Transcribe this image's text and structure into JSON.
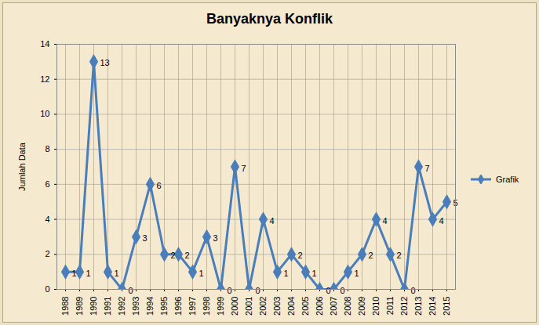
{
  "chart_data": {
    "type": "line",
    "title": "Banyaknya Konflik",
    "y_label": "Jumlah Data",
    "categories": [
      "1988",
      "1989",
      "1990",
      "1991",
      "1992",
      "1993",
      "1994",
      "1995",
      "1996",
      "1997",
      "1998",
      "1999",
      "2000",
      "2001",
      "2002",
      "2003",
      "2004",
      "2005",
      "2006",
      "2007",
      "2008",
      "2009",
      "2010",
      "2011",
      "2012",
      "2013",
      "2014",
      "2015"
    ],
    "series": [
      {
        "name": "Grafik",
        "color": "#4a7ebb",
        "marker": "diamond",
        "line_style": "solid",
        "values": [
          1,
          1,
          13,
          1,
          0,
          3,
          6,
          2,
          2,
          1,
          3,
          0,
          7,
          0,
          4,
          1,
          2,
          1,
          0,
          0,
          1,
          2,
          4,
          2,
          0,
          7,
          4,
          5
        ]
      }
    ],
    "ylim": [
      0,
      14
    ],
    "yticks": [
      0,
      2,
      4,
      6,
      8,
      10,
      12,
      14
    ],
    "grid": true,
    "legend": "right",
    "data_labels": true
  }
}
